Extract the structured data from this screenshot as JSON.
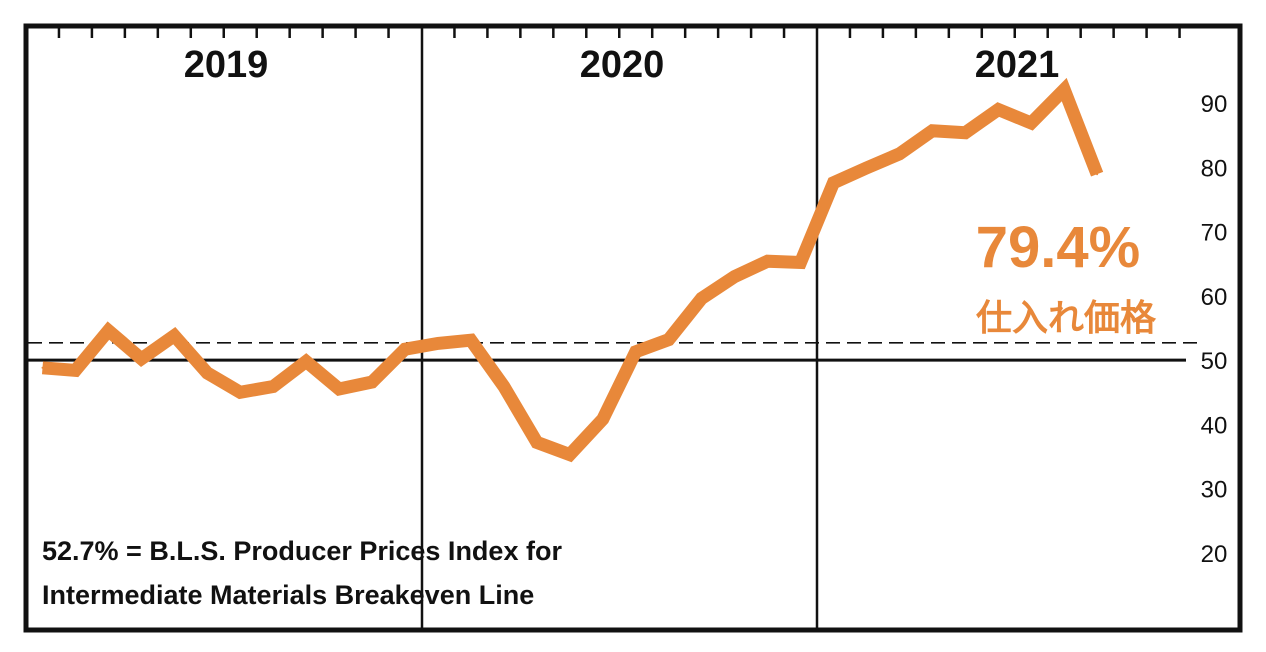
{
  "chart_data": {
    "type": "line",
    "title": "",
    "xlabel": "",
    "ylabel": "",
    "years": [
      "2019",
      "2020",
      "2021"
    ],
    "y_ticks": [
      "20",
      "30",
      "40",
      "50",
      "60",
      "70",
      "80",
      "90"
    ],
    "ylim": [
      8,
      102
    ],
    "reference_lines": [
      {
        "value": 50,
        "style": "solid"
      },
      {
        "value": 52.7,
        "style": "dashed"
      }
    ],
    "series": [
      {
        "color": "#E8883A",
        "x": [
          "2019-01",
          "2019-02",
          "2019-03",
          "2019-04",
          "2019-05",
          "2019-06",
          "2019-07",
          "2019-08",
          "2019-09",
          "2019-10",
          "2019-11",
          "2019-12",
          "2020-01",
          "2020-02",
          "2020-03",
          "2020-04",
          "2020-05",
          "2020-06",
          "2020-07",
          "2020-08",
          "2020-09",
          "2020-10",
          "2020-11",
          "2020-12",
          "2021-01",
          "2021-02",
          "2021-03",
          "2021-04",
          "2021-05",
          "2021-06",
          "2021-07",
          "2021-08"
        ],
        "values": [
          48.8,
          48.4,
          54.6,
          50.2,
          53.8,
          48.0,
          45.0,
          45.9,
          49.8,
          45.5,
          46.6,
          51.7,
          52.6,
          53.1,
          45.9,
          37.2,
          35.3,
          40.8,
          51.3,
          53.2,
          59.6,
          63.0,
          65.4,
          65.2,
          77.6,
          79.9,
          82.1,
          85.7,
          85.4,
          89.0,
          86.9,
          92.1
        ]
      }
    ],
    "annotations": {
      "value_label": "79.4%",
      "value_label_jp": "仕入れ価格",
      "note_line1": "52.7% = B.L.S. Producer Prices Index for",
      "note_line2": "Intermediate Materials Breakeven Line"
    },
    "final_point": {
      "x": "2021-09",
      "value": 79.4
    },
    "grid": false
  }
}
